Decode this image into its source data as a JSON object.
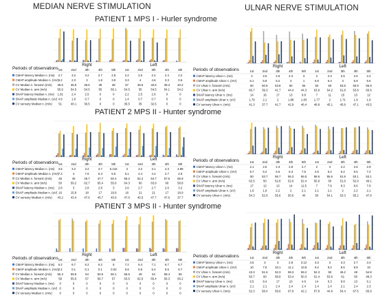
{
  "headers": {
    "median_title": "MEDIAN NERVE STIMULATION",
    "ulnar_title": "ULNAR NERVE STIMULATION",
    "patient1": "PATIENT 1 MPS I - Hurler syndrome",
    "patient2": "PATIENT 2 MPS II - Hunter syndrome",
    "patient3": "PATIENT 3 MPS II - Hunter syndrome"
  },
  "colors": {
    "cmap_latency": "#4472c4",
    "cmap_amplitude": "#ed7d31",
    "cv_forearm": "#a5a5a5",
    "cv_arm": "#ffc000",
    "snap_latency": "#2e4a8c",
    "snap_amplitude": "#5b9bd5",
    "cv_sensory": "#1f3864"
  },
  "chart_data": [
    {
      "type": "bar",
      "panel": "Patient 1 - Median nerve",
      "periods_label": "Periods of observations",
      "sides": [
        "Right",
        "Left"
      ],
      "categories": [
        "1st",
        "2nd",
        "3th",
        "4th",
        "5th",
        "1st",
        "2nd",
        "3th",
        "4th",
        "5th"
      ],
      "series": [
        {
          "name": "CMAP latency Median n. (ms)",
          "values": [
            2.7,
            3.2,
            3.2,
            2.7,
            2.8,
            2.2,
            2.5,
            2.4,
            2.4,
            2.2
          ]
        },
        {
          "name": "CMAP amplitude Median n. (mV)",
          "values": [
            3.2,
            2.3,
            3,
            1.8,
            3.9,
            3.3,
            4,
            4.6,
            3.3,
            0.6
          ]
        },
        {
          "name": "CV Median n. forearm (m/s)",
          "values": [
            39.6,
            35.8,
            36.5,
            39,
            38,
            57,
            39.6,
            40.6,
            39.3,
            40.2
          ]
        },
        {
          "name": "CV Median n. arm (m/s)",
          "values": [
            55.6,
            54.5,
            54.5,
            55,
            56.1,
            54.5,
            55,
            54.5,
            54.1,
            54.2
          ]
        },
        {
          "name": "SNAP latency Median n. (ms)",
          "values": [
            1.81,
            2.4,
            2.5,
            0,
            0,
            2.2,
            2.5,
            2.6,
            0,
            0
          ]
        },
        {
          "name": "SNAP amplitude Median n. (uV)",
          "values": [
            4.9,
            1.8,
            0.7,
            0,
            0,
            1.4,
            0.7,
            0.7,
            0,
            0
          ]
        },
        {
          "name": "CV sensory Median n. (m/s)",
          "values": [
            51,
            40.1,
            36.5,
            0,
            0,
            35.5,
            35,
            32.5,
            0,
            0
          ]
        }
      ]
    },
    {
      "type": "bar",
      "panel": "Patient 1 - Ulnar nerve",
      "periods_label": "Periods of observations",
      "sides": [
        "Right",
        "Left"
      ],
      "categories": [
        "1st",
        "2nd",
        "3th",
        "4th",
        "5th",
        "1st",
        "2nd",
        "3th",
        "4th",
        "5th"
      ],
      "series": [
        {
          "name": "CMAP latency Ulnar n. (ms)",
          "values": [
            2,
            2.6,
            2.5,
            2.3,
            3,
            2,
            2.3,
            2.5,
            2.6,
            2.4
          ]
        },
        {
          "name": "CMAP amplitude Ulnar n. (mV)",
          "values": [
            6.1,
            5.9,
            5.2,
            3,
            1,
            6.9,
            6.4,
            3,
            5.9,
            5.6
          ]
        },
        {
          "name": "CV Ulnar n. forearm (m/s)",
          "values": [
            60,
            60.8,
            53.8,
            60,
            56,
            50,
            50,
            53.8,
            60.9,
            55.9
          ]
        },
        {
          "name": "CV Ulnar n. arm (m/s)",
          "values": [
            66.7,
            39.3,
            41.7,
            44.4,
            44.3,
            63.6,
            54.2,
            61.8,
            53.8,
            60.6
          ]
        },
        {
          "name": "SNAP latency Ulnar n. (ms)",
          "values": [
            14,
            16,
            17,
            13,
            9.8,
            7,
            11,
            15,
            13,
            12
          ]
        },
        {
          "name": "SNAP amplitude Ulnar n. (uV)",
          "values": [
            1.79,
            2.1,
            2,
            1.88,
            1.83,
            1.77,
            2,
            1.71,
            1.9,
            1.9
          ]
        },
        {
          "name": "CV sensory Ulnar n. (m/s)",
          "values": [
            41.3,
            37.7,
            41.7,
            42.9,
            46.4,
            48.8,
            45.1,
            45.8,
            47.1,
            43.5
          ]
        }
      ]
    },
    {
      "type": "bar",
      "panel": "Patient 2 - Median nerve",
      "periods_label": "Periods of observations",
      "sides": [
        "Right",
        "Left"
      ],
      "categories": [
        "1st",
        "2nd",
        "3th",
        "4th",
        "5th",
        "1st",
        "2nd",
        "3th",
        "4th",
        "5th"
      ],
      "series": [
        {
          "name": "CMAP latency Median n. (ms)",
          "values": [
            3.5,
            3.2,
            3.2,
            3.7,
            5.132,
            3,
            3.2,
            3.1,
            4.3,
            4.89
          ]
        },
        {
          "name": "CMAP amplitude Median n. (mV)",
          "values": [
            7.2,
            4,
            7.6,
            6.3,
            5.5,
            6.1,
            4.4,
            4.2,
            2.7,
            2.6
          ]
        },
        {
          "name": "CV Median n. forearm (m/s)",
          "values": [
            45,
            46,
            46.7,
            47.7,
            50.4,
            55.2,
            52.2,
            54.7,
            57.6,
            55.9
          ]
        },
        {
          "name": "CV Median n. arm (m/s)",
          "values": [
            50,
            59.2,
            62.7,
            65.4,
            55.6,
            64.3,
            60,
            63.9,
            60,
            58.8
          ]
        },
        {
          "name": "SNAP latency Median n. (ms)",
          "values": [
            2.8,
            3,
            2.8,
            2.8,
            3,
            2.6,
            2.7,
            2.7,
            2.6,
            3.2
          ]
        },
        {
          "name": "SNAP amplitude Median n. (uV)",
          "values": [
            16,
            15.8,
            18,
            17,
            19.9,
            16,
            21,
            21,
            17,
            18.9
          ]
        },
        {
          "name": "CV sensory Median n. (m/s)",
          "values": [
            43.2,
            43.4,
            47.6,
            45.7,
            45.9,
            47.6,
            45.5,
            47.7,
            47.6,
            37.7
          ]
        }
      ]
    },
    {
      "type": "bar",
      "panel": "Patient 2 - Ulnar nerve",
      "periods_label": "Periods of observations",
      "sides": [
        "Right",
        "Left"
      ],
      "categories": [
        "1st",
        "2nd",
        "3th",
        "4th",
        "5th",
        "1st",
        "2nd",
        "3th",
        "4th",
        "5th"
      ],
      "series": [
        {
          "name": "CMAP latency Ulnar n. (ms)",
          "values": [
            2.1,
            2.5,
            2.3,
            2.8,
            2.7,
            2,
            3,
            2.2,
            2.6,
            2.9
          ]
        },
        {
          "name": "CMAP amplitude Ulnar n. (mV)",
          "values": [
            5.7,
            5.2,
            6.5,
            6.3,
            7.5,
            4.6,
            6.2,
            6.2,
            6.5,
            7.2
          ]
        },
        {
          "name": "CV Ulnar n. forearm (m/s)",
          "values": [
            50,
            53.7,
            56.7,
            56.3,
            56.5,
            58.6,
            55.6,
            51.9,
            53.1,
            53.1
          ]
        },
        {
          "name": "CV Ulnar n. arm (m/s)",
          "values": [
            62.5,
            50,
            52.8,
            52.6,
            52.4,
            55.6,
            50,
            51.6,
            52.9,
            49.1
          ]
        },
        {
          "name": "SNAP latency Ulnar n. (ms)",
          "values": [
            17,
            12,
            13,
            14,
            11.5,
            7,
            7.9,
            8.3,
            8.6,
            7.8
          ]
        },
        {
          "name": "SNAP amplitude Ulnar n. (uV)",
          "values": [
            1.9,
            1.9,
            2.2,
            2,
            2.1,
            2.1,
            2.1,
            2,
            2.2,
            2.1
          ]
        },
        {
          "name": "CV sensory Ulnar n. (m/s)",
          "values": [
            54.3,
            52.6,
            55.6,
            50.6,
            40,
            50,
            54.1,
            53.3,
            55.2,
            47.8
          ]
        }
      ]
    },
    {
      "type": "bar",
      "panel": "Patient 3 - Median nerve",
      "periods_label": "Periods of observations",
      "sides": [
        "Right",
        "Left"
      ],
      "categories": [
        "1st",
        "2nd",
        "3th",
        "4th",
        "5th",
        "1st",
        "2nd",
        "3th",
        "4th",
        "5th"
      ],
      "series": [
        {
          "name": "CMAP latency Median n. (ms)",
          "values": [
            6.2,
            6.7,
            6.2,
            6.2,
            6,
            7.2,
            6.4,
            7.1,
            6.7,
            6.7
          ]
        },
        {
          "name": "CMAP amplitude Median n. (mV)",
          "values": [
            2.2,
            0.1,
            0.1,
            0.1,
            0.03,
            6.9,
            5.9,
            5.4,
            5.5,
            6.7
          ]
        },
        {
          "name": "CV Median n. forearm (m/s)",
          "values": [
            56.3,
            59.6,
            54,
            50.5,
            50.1,
            56.5,
            49,
            54,
            58.4,
            55
          ]
        },
        {
          "name": "CV Median n. arm (m/s)",
          "values": [
            59,
            55.6,
            57,
            56.7,
            57,
            63.5,
            62.5,
            65.4,
            56.3,
            56.2
          ]
        },
        {
          "name": "SNAP latency Median n. (ms)",
          "values": [
            0,
            0,
            0,
            0,
            0,
            0,
            0,
            0,
            0,
            0
          ]
        },
        {
          "name": "SNAP amplitude Median n. (uV)",
          "values": [
            0,
            0,
            0,
            0,
            0,
            0,
            0,
            0,
            0,
            0
          ]
        },
        {
          "name": "CV sensory Median n. (m/s)",
          "values": [
            0,
            0,
            0,
            0,
            0,
            0,
            0,
            0,
            0,
            0
          ]
        }
      ]
    },
    {
      "type": "bar",
      "panel": "Patient 3 - Ulnar nerve",
      "periods_label": "Periods of observations",
      "sides": [
        "Right",
        "Left"
      ],
      "categories": [
        "1st",
        "2nd",
        "3th",
        "4th",
        "5th",
        "1st",
        "2nd",
        "3th",
        "4th",
        "5th"
      ],
      "series": [
        {
          "name": "CMAP latency Ulnar n. (ms)",
          "values": [
            3.5,
            3,
            3,
            2.8,
            3.12,
            3.3,
            3,
            3.3,
            2.7,
            3.4
          ]
        },
        {
          "name": "CMAP amplitude Ulnar n. (mV)",
          "values": [
            10,
            7.5,
            10.1,
            11.1,
            10.8,
            9.2,
            9.2,
            8.6,
            8.8,
            10
          ]
        },
        {
          "name": "CV Ulnar n. forearm (m/s)",
          "values": [
            43.3,
            51.6,
            52.3,
            59.3,
            59.2,
            52.3,
            50,
            46.2,
            48,
            54.8
          ]
        },
        {
          "name": "CV Ulnar n. arm (m/s)",
          "values": [
            50.7,
            60,
            58.9,
            53.4,
            50.3,
            51.4,
            53.6,
            61,
            50,
            48.3
          ]
        },
        {
          "name": "SNAP latency Ulnar n. (ms)",
          "values": [
            6.5,
            8.4,
            17,
            10,
            4.6,
            14,
            6.3,
            8.8,
            13,
            6.1
          ]
        },
        {
          "name": "SNAP amplitude Ulnar n. (uV)",
          "values": [
            2.1,
            2.1,
            2.4,
            2.4,
            2.4,
            2.4,
            2.4,
            2.1,
            2.4,
            2.3
          ]
        },
        {
          "name": "CV sensory Ulnar n. (m/s)",
          "values": [
            52.3,
            58.4,
            59.6,
            67.9,
            42.1,
            57.8,
            44.9,
            54.4,
            67.5,
            65.9
          ]
        }
      ]
    }
  ]
}
